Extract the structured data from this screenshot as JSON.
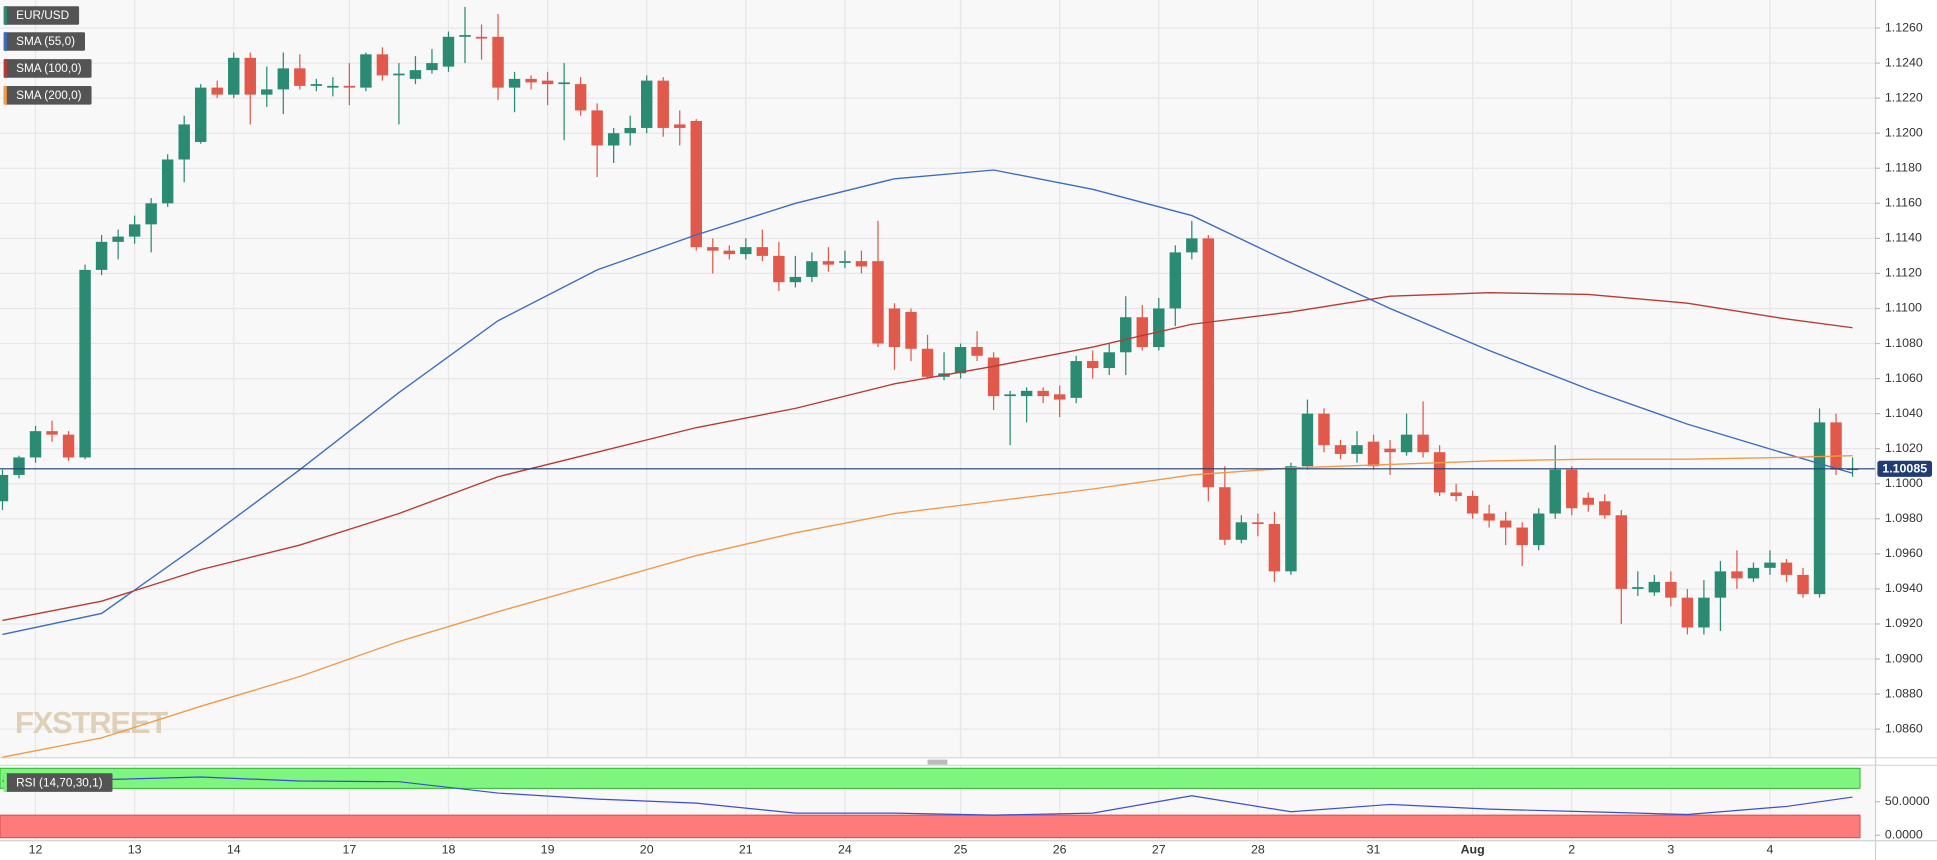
{
  "chart_data": {
    "type": "candlestick",
    "categories": [
      null,
      null,
      "12",
      null,
      null,
      null,
      null,
      null,
      "13",
      null,
      null,
      null,
      null,
      null,
      "14",
      null,
      null,
      null,
      null,
      null,
      null,
      "17",
      null,
      null,
      null,
      null,
      null,
      "18",
      null,
      null,
      null,
      null,
      null,
      "19",
      null,
      null,
      null,
      null,
      null,
      "20",
      null,
      null,
      null,
      null,
      null,
      "21",
      null,
      null,
      null,
      null,
      null,
      "24",
      null,
      null,
      null,
      null,
      null,
      null,
      "25",
      null,
      null,
      null,
      null,
      null,
      "26",
      null,
      null,
      null,
      null,
      null,
      "27",
      null,
      null,
      null,
      null,
      null,
      "28",
      null,
      null,
      null,
      null,
      null,
      null,
      "31",
      null,
      null,
      null,
      null,
      null,
      "Aug",
      null,
      null,
      null,
      null,
      null,
      "2",
      null,
      null,
      null,
      null,
      null,
      "3",
      null,
      null,
      null,
      null,
      null,
      "4",
      null,
      null,
      null,
      null,
      null
    ],
    "series": [
      {
        "name": "EUR/USD",
        "up_color": "#2b8a72",
        "down_color": "#e0594b",
        "open": [
          1.099,
          1.1005,
          1.1015,
          1.103,
          1.1028,
          1.1015,
          1.1122,
          1.1138,
          1.1141,
          1.1148,
          1.116,
          1.1185,
          1.1195,
          1.1226,
          1.1222,
          1.1243,
          1.1222,
          1.1225,
          1.1237,
          1.1227,
          1.1226,
          1.1227,
          1.1226,
          1.1245,
          1.1233,
          1.1231,
          1.1236,
          1.1238,
          1.1255,
          1.1255,
          1.1255,
          1.1226,
          1.1231,
          1.123,
          1.1228,
          1.1228,
          1.1213,
          1.1193,
          1.12,
          1.1203,
          1.123,
          1.1205,
          1.1207,
          1.1135,
          1.1133,
          1.1131,
          1.1135,
          1.113,
          1.1115,
          1.1118,
          1.1127,
          1.1126,
          1.1127,
          1.1127,
          1.11,
          1.1098,
          1.1077,
          1.1061,
          1.1063,
          1.1078,
          1.1072,
          1.105,
          1.105,
          1.1053,
          1.1051,
          1.1049,
          1.107,
          1.1066,
          1.1075,
          1.1095,
          1.1078,
          1.11,
          1.1132,
          1.114,
          1.0998,
          1.0968,
          1.0978,
          1.0977,
          1.095,
          1.101,
          1.104,
          1.1022,
          1.1017,
          1.1024,
          1.102,
          1.1018,
          1.1028,
          1.1018,
          1.0995,
          1.0993,
          1.0983,
          1.0979,
          1.0975,
          1.0965,
          1.0983,
          1.1008,
          1.0992,
          1.099,
          1.0982,
          1.094,
          1.0938,
          1.0944,
          1.0935,
          1.0918,
          1.0935,
          1.095,
          1.0946,
          1.0952,
          1.0955,
          1.0948,
          1.0937,
          1.1035,
          1.1008
        ],
        "high": [
          1.1008,
          1.1016,
          1.1033,
          1.1036,
          1.103,
          1.1125,
          1.1142,
          1.1145,
          1.1153,
          1.1163,
          1.1188,
          1.121,
          1.1228,
          1.123,
          1.1246,
          1.1246,
          1.1238,
          1.1246,
          1.1245,
          1.1231,
          1.1232,
          1.124,
          1.1246,
          1.1249,
          1.124,
          1.1244,
          1.1248,
          1.1258,
          1.1272,
          1.1262,
          1.1268,
          1.1235,
          1.1233,
          1.1235,
          1.124,
          1.1232,
          1.1217,
          1.1203,
          1.121,
          1.1233,
          1.1232,
          1.1213,
          1.1208,
          1.114,
          1.1136,
          1.114,
          1.1145,
          1.1138,
          1.113,
          1.1132,
          1.1135,
          1.1133,
          1.1133,
          1.115,
          1.1103,
          1.11,
          1.1085,
          1.1075,
          1.108,
          1.1087,
          1.1075,
          1.1053,
          1.1055,
          1.1055,
          1.1056,
          1.1073,
          1.1076,
          1.108,
          1.1107,
          1.1102,
          1.1106,
          1.1136,
          1.115,
          1.1142,
          1.101,
          1.0982,
          1.0983,
          1.0984,
          1.1012,
          1.1048,
          1.1043,
          1.1025,
          1.103,
          1.1028,
          1.1025,
          1.104,
          1.1047,
          1.1022,
          1.1,
          1.0996,
          1.0988,
          1.0984,
          1.0978,
          1.0986,
          1.1022,
          1.101,
          1.0995,
          1.0994,
          1.0985,
          1.095,
          1.0948,
          1.095,
          1.094,
          1.0945,
          1.0956,
          1.0962,
          1.0955,
          1.0962,
          1.0957,
          1.0952,
          1.1043,
          1.104,
          1.1015
        ],
        "low": [
          1.0985,
          1.1003,
          1.1012,
          1.1024,
          1.1013,
          1.1014,
          1.1119,
          1.1128,
          1.1137,
          1.1132,
          1.1158,
          1.1172,
          1.1194,
          1.122,
          1.122,
          1.1205,
          1.1215,
          1.1211,
          1.1225,
          1.1224,
          1.1221,
          1.1216,
          1.1224,
          1.123,
          1.1205,
          1.1228,
          1.1234,
          1.1235,
          1.124,
          1.1242,
          1.1219,
          1.1212,
          1.1225,
          1.1216,
          1.1196,
          1.121,
          1.1175,
          1.1183,
          1.1193,
          1.12,
          1.1198,
          1.1193,
          1.1133,
          1.112,
          1.1128,
          1.1128,
          1.1127,
          1.111,
          1.1112,
          1.1115,
          1.1121,
          1.1123,
          1.112,
          1.1078,
          1.1065,
          1.107,
          1.106,
          1.1059,
          1.106,
          1.107,
          1.1042,
          1.1022,
          1.1035,
          1.1046,
          1.1038,
          1.1046,
          1.106,
          1.1062,
          1.1062,
          1.1076,
          1.1076,
          1.109,
          1.1128,
          1.099,
          1.0965,
          1.0966,
          1.097,
          1.0944,
          1.0948,
          1.1008,
          1.1018,
          1.1014,
          1.1012,
          1.1008,
          1.1005,
          1.1016,
          1.1015,
          1.0993,
          1.099,
          1.098,
          1.0975,
          1.0965,
          1.0953,
          1.0962,
          1.098,
          1.0982,
          1.0984,
          1.098,
          1.092,
          1.0936,
          1.0936,
          1.093,
          1.0914,
          1.0914,
          1.0916,
          1.094,
          1.0944,
          1.0948,
          1.0944,
          1.0935,
          1.0935,
          1.1005,
          1.1004
        ],
        "close": [
          1.1005,
          1.1015,
          1.103,
          1.1028,
          1.1015,
          1.1122,
          1.1138,
          1.1141,
          1.1148,
          1.116,
          1.1185,
          1.1205,
          1.1226,
          1.1222,
          1.1243,
          1.1222,
          1.1225,
          1.1237,
          1.1227,
          1.1228,
          1.1227,
          1.1226,
          1.1245,
          1.1233,
          1.1234,
          1.1236,
          1.124,
          1.1255,
          1.1256,
          1.1254,
          1.1226,
          1.1231,
          1.1229,
          1.1228,
          1.1229,
          1.1213,
          1.1193,
          1.12,
          1.1203,
          1.123,
          1.1203,
          1.1203,
          1.1135,
          1.1133,
          1.1131,
          1.1135,
          1.113,
          1.1115,
          1.1118,
          1.1127,
          1.1125,
          1.1127,
          1.1124,
          1.108,
          1.1078,
          1.1077,
          1.1061,
          1.1063,
          1.1078,
          1.1073,
          1.105,
          1.1051,
          1.1053,
          1.105,
          1.1048,
          1.107,
          1.1066,
          1.1075,
          1.1095,
          1.1078,
          1.11,
          1.1132,
          1.114,
          1.0998,
          1.0968,
          1.0978,
          1.0977,
          1.095,
          1.101,
          1.104,
          1.1022,
          1.1017,
          1.1022,
          1.101,
          1.1018,
          1.1028,
          1.1018,
          1.0995,
          1.0993,
          1.0983,
          1.0979,
          1.0975,
          1.0965,
          1.0983,
          1.1008,
          1.0986,
          1.0988,
          1.0982,
          1.094,
          1.0941,
          1.0944,
          1.0935,
          1.0918,
          1.0935,
          1.095,
          1.0946,
          1.0952,
          1.0955,
          1.0948,
          1.0937,
          1.1035,
          1.1008,
          1.10085
        ]
      }
    ],
    "overlays": [
      {
        "name": "SMA (55,0)",
        "color": "#3b6cc0",
        "x": [
          0,
          6,
          12,
          18,
          24,
          30,
          36,
          42,
          48,
          54,
          60,
          66,
          72,
          78,
          84,
          90,
          96,
          102,
          108,
          112
        ],
        "values": [
          1.0914,
          1.0926,
          1.0966,
          1.1008,
          1.1052,
          1.1093,
          1.1122,
          1.1142,
          1.116,
          1.1174,
          1.1179,
          1.1168,
          1.1153,
          1.1126,
          1.11,
          1.1076,
          1.1054,
          1.1034,
          1.1017,
          1.1006
        ]
      },
      {
        "name": "SMA (100,0)",
        "color": "#b93a32",
        "x": [
          0,
          6,
          12,
          18,
          24,
          30,
          36,
          42,
          48,
          54,
          60,
          66,
          72,
          78,
          84,
          90,
          96,
          102,
          108,
          112
        ],
        "values": [
          1.0922,
          1.0933,
          1.0951,
          1.0965,
          1.0983,
          1.1004,
          1.1018,
          1.1032,
          1.1043,
          1.1057,
          1.1067,
          1.1078,
          1.1091,
          1.1098,
          1.1107,
          1.1109,
          1.1108,
          1.1103,
          1.1094,
          1.1089
        ]
      },
      {
        "name": "SMA (200,0)",
        "color": "#f09a48",
        "x": [
          0,
          6,
          12,
          18,
          24,
          30,
          36,
          42,
          48,
          54,
          60,
          66,
          72,
          78,
          84,
          90,
          96,
          102,
          108,
          112
        ],
        "values": [
          1.0844,
          1.0855,
          1.0873,
          1.089,
          1.091,
          1.0927,
          1.0943,
          1.0959,
          1.0972,
          1.0983,
          1.099,
          1.0997,
          1.1005,
          1.1009,
          1.1011,
          1.1013,
          1.1014,
          1.1014,
          1.1015,
          1.1016
        ]
      }
    ],
    "ylim": [
      1.0844,
      1.1276
    ],
    "yticks": [
      {
        "value": 1.086,
        "label": "1.0860"
      },
      {
        "value": 1.088,
        "label": "1.0880"
      },
      {
        "value": 1.09,
        "label": "1.0900"
      },
      {
        "value": 1.092,
        "label": "1.0920"
      },
      {
        "value": 1.094,
        "label": "1.0940"
      },
      {
        "value": 1.096,
        "label": "1.0960"
      },
      {
        "value": 1.098,
        "label": "1.0980"
      },
      {
        "value": 1.1,
        "label": "1.1000"
      },
      {
        "value": 1.102,
        "label": "1.1020"
      },
      {
        "value": 1.104,
        "label": "1.1040"
      },
      {
        "value": 1.106,
        "label": "1.1060"
      },
      {
        "value": 1.108,
        "label": "1.1080"
      },
      {
        "value": 1.11,
        "label": "1.1100"
      },
      {
        "value": 1.112,
        "label": "1.1120"
      },
      {
        "value": 1.114,
        "label": "1.1140"
      },
      {
        "value": 1.116,
        "label": "1.1160"
      },
      {
        "value": 1.118,
        "label": "1.1180"
      },
      {
        "value": 1.12,
        "label": "1.1200"
      },
      {
        "value": 1.122,
        "label": "1.1220"
      },
      {
        "value": 1.124,
        "label": "1.1240"
      },
      {
        "value": 1.126,
        "label": "1.1260"
      }
    ],
    "grid": true,
    "last_price": 1.10085,
    "last_price_color": "#1f3d73",
    "watermark": "FXSTREET",
    "indicator": {
      "name": "RSI (14,70,30,1)",
      "color": "#3a4fcc",
      "x": [
        0,
        6,
        12,
        18,
        24,
        30,
        36,
        42,
        48,
        54,
        60,
        66,
        72,
        78,
        84,
        90,
        96,
        102,
        108,
        112
      ],
      "values": [
        81,
        83,
        87,
        81,
        80,
        63,
        54,
        48,
        33,
        33,
        30,
        33,
        59,
        35,
        46,
        39,
        35,
        31,
        43,
        57
      ],
      "ylim": [
        0,
        100
      ],
      "yticks": [
        {
          "value": 50,
          "label": "50.0000"
        },
        {
          "value": 0,
          "label": "0.0000"
        }
      ],
      "overbought": 70,
      "oversold": 30,
      "overbought_color": "#7ef57e",
      "oversold_color": "#ff7a7a"
    }
  }
}
